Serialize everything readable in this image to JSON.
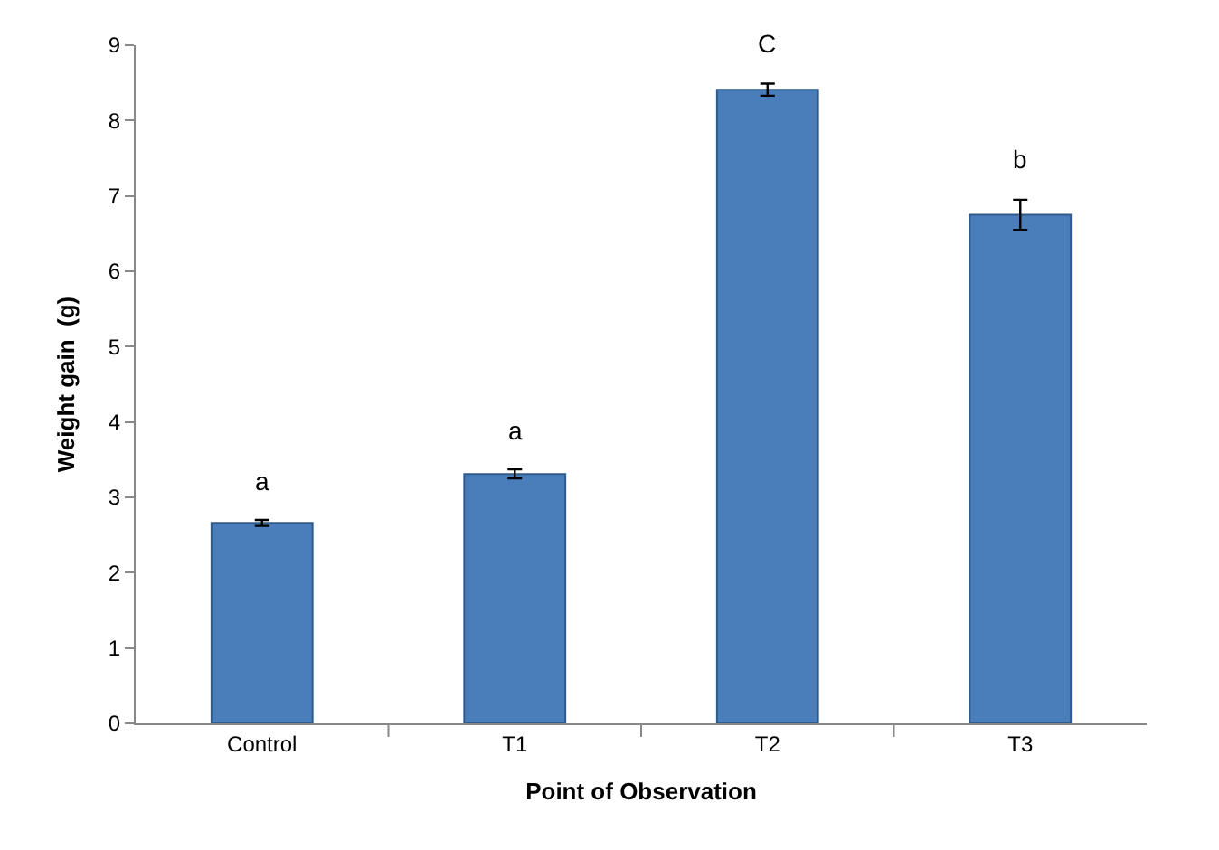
{
  "chart_data": {
    "type": "bar",
    "xlabel": "Point of Observation",
    "ylabel": "Weight gain  (g)",
    "categories": [
      "Control",
      "T1",
      "T2",
      "T3"
    ],
    "values": [
      2.66,
      3.31,
      8.41,
      6.75
    ],
    "errors": [
      0.04,
      0.06,
      0.08,
      0.2
    ],
    "color": "#4a7ebb",
    "ylim": [
      0,
      9
    ],
    "yticks": [
      0,
      1,
      2,
      3,
      4,
      5,
      6,
      7,
      8,
      9
    ],
    "annotations": [
      "a",
      "a",
      "C",
      "b"
    ]
  }
}
